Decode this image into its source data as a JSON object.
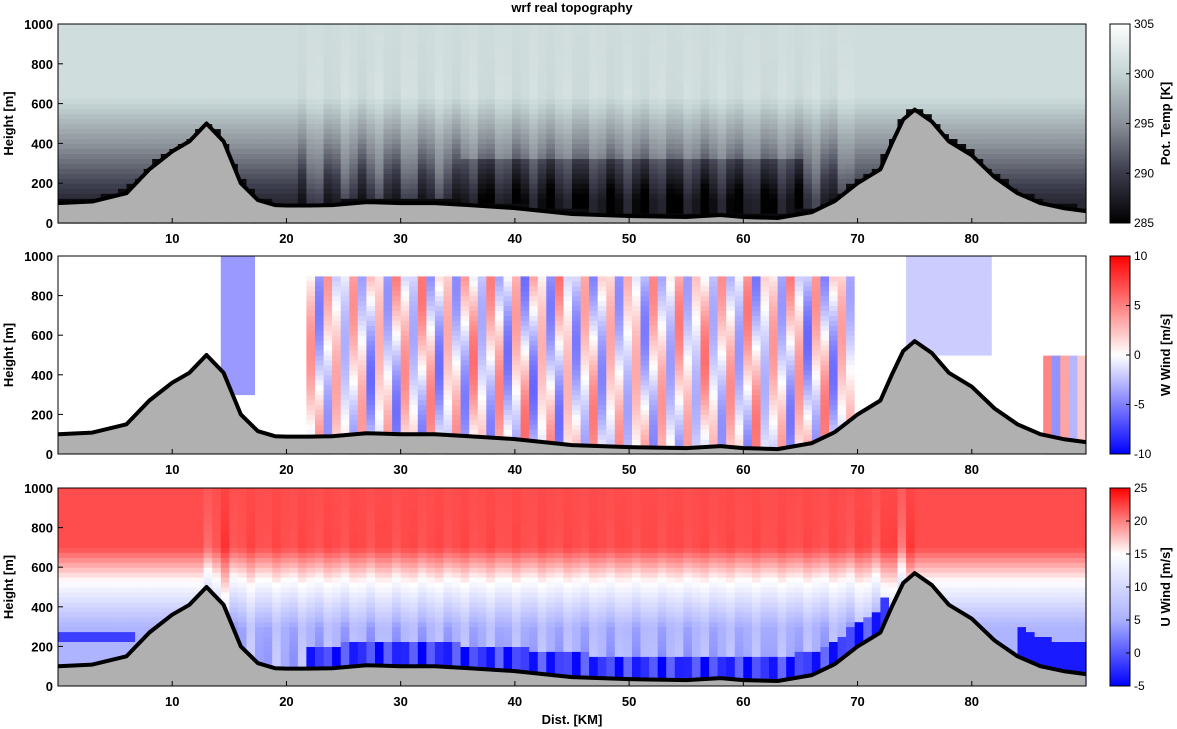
{
  "chart_data": [
    {
      "type": "heatmap",
      "title": "wrf real topography",
      "xlabel": "",
      "ylabel": "Height [m]",
      "xlim": [
        0,
        90
      ],
      "ylim": [
        0,
        1000
      ],
      "xticks": [
        10,
        20,
        30,
        40,
        50,
        60,
        70,
        80
      ],
      "yticks": [
        0,
        200,
        400,
        600,
        800,
        1000
      ],
      "colorbar": {
        "label": "Pot. Temp [K]",
        "min": 285,
        "max": 305,
        "ticks": [
          285,
          290,
          295,
          300,
          305
        ],
        "colors": [
          "#000000",
          "#3a3a4a",
          "#8a9098",
          "#c4d4d4",
          "#ffffff"
        ]
      },
      "field": "potential_temperature",
      "terrain": {
        "x": [
          0,
          3,
          6,
          8,
          10,
          11.5,
          13,
          14.5,
          16,
          17.5,
          19,
          20,
          22,
          24,
          27,
          30,
          33,
          36,
          40,
          45,
          50,
          55,
          58,
          60,
          63,
          66,
          68,
          70,
          71,
          72,
          73,
          74,
          75,
          76.5,
          78,
          80,
          82,
          84,
          86,
          88,
          90
        ],
        "height": [
          100,
          108,
          150,
          270,
          360,
          410,
          500,
          410,
          200,
          115,
          90,
          88,
          88,
          90,
          105,
          100,
          100,
          90,
          75,
          45,
          35,
          30,
          40,
          30,
          25,
          55,
          110,
          200,
          235,
          270,
          400,
          520,
          570,
          510,
          410,
          340,
          230,
          150,
          100,
          75,
          60
        ]
      }
    },
    {
      "type": "heatmap",
      "title": "",
      "xlabel": "",
      "ylabel": "Height [m]",
      "xlim": [
        0,
        90
      ],
      "ylim": [
        0,
        1000
      ],
      "xticks": [
        10,
        20,
        30,
        40,
        50,
        60,
        70,
        80
      ],
      "yticks": [
        0,
        200,
        400,
        600,
        800,
        1000
      ],
      "colorbar": {
        "label": "W Wind [m/s]",
        "min": -10,
        "max": 10,
        "ticks": [
          -10,
          -5,
          0,
          5,
          10
        ],
        "colors": [
          "#0000ff",
          "#ffffff",
          "#ff0000"
        ]
      },
      "field": "vertical_wind"
    },
    {
      "type": "heatmap",
      "title": "",
      "xlabel": "Dist. [KM]",
      "ylabel": "Height [m]",
      "xlim": [
        0,
        90
      ],
      "ylim": [
        0,
        1000
      ],
      "xticks": [
        10,
        20,
        30,
        40,
        50,
        60,
        70,
        80
      ],
      "yticks": [
        0,
        200,
        400,
        600,
        800,
        1000
      ],
      "colorbar": {
        "label": "U Wind [m/s]",
        "min": -5,
        "max": 25,
        "ticks": [
          -5,
          0,
          5,
          10,
          15,
          20,
          25
        ],
        "colors": [
          "#0000ff",
          "#aab0ff",
          "#ffffff",
          "#ff0000"
        ]
      },
      "field": "horizontal_wind"
    }
  ]
}
